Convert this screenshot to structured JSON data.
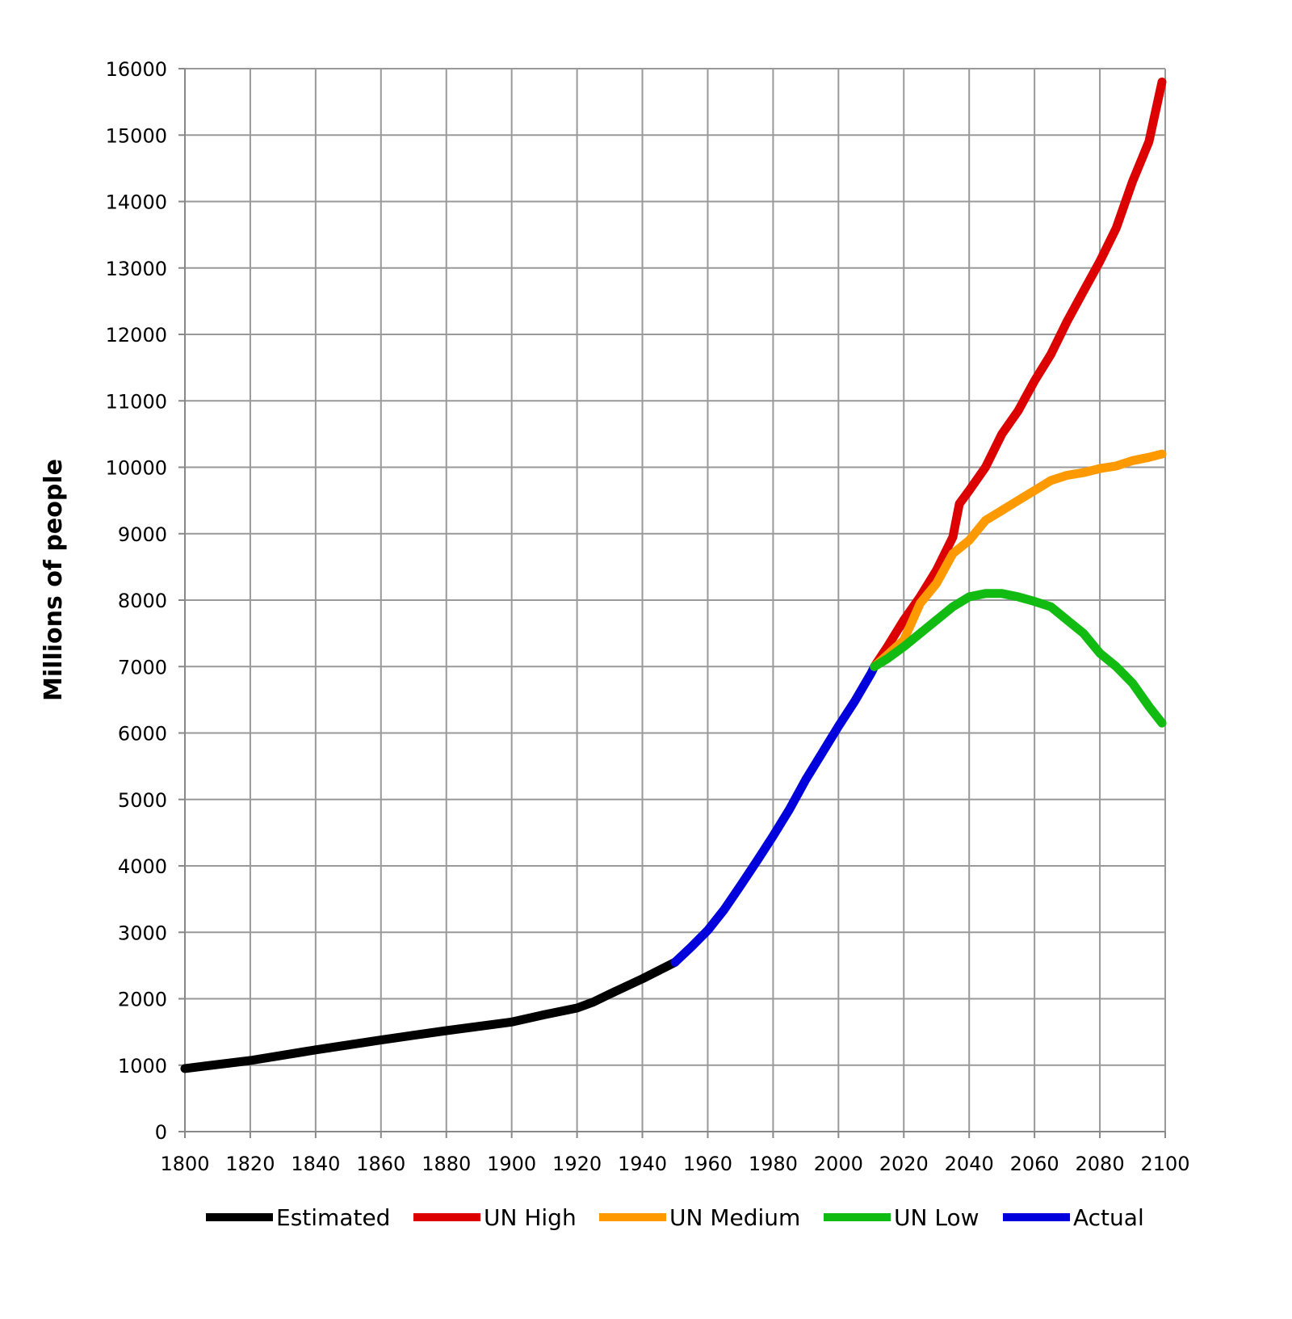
{
  "chart_data": {
    "type": "line",
    "title": "",
    "xlabel": "",
    "ylabel": "Millions of people",
    "xlim": [
      1800,
      2100
    ],
    "ylim": [
      0,
      16000
    ],
    "xticks": [
      1800,
      1820,
      1840,
      1860,
      1880,
      1900,
      1920,
      1940,
      1960,
      1980,
      2000,
      2020,
      2040,
      2060,
      2080,
      2100
    ],
    "yticks": [
      0,
      1000,
      2000,
      3000,
      4000,
      5000,
      6000,
      7000,
      8000,
      9000,
      10000,
      11000,
      12000,
      13000,
      14000,
      15000,
      16000
    ],
    "grid": true,
    "legend_position": "bottom",
    "series": [
      {
        "name": "Estimated",
        "color": "#000000",
        "x": [
          1800,
          1820,
          1840,
          1860,
          1880,
          1900,
          1910,
          1920,
          1925,
          1930,
          1940,
          1950
        ],
        "y": [
          950,
          1070,
          1230,
          1380,
          1520,
          1650,
          1760,
          1860,
          1950,
          2070,
          2300,
          2550
        ]
      },
      {
        "name": "UN High",
        "color": "#dd0000",
        "x": [
          2011,
          2015,
          2020,
          2025,
          2030,
          2035,
          2037,
          2040,
          2045,
          2050,
          2055,
          2060,
          2065,
          2070,
          2075,
          2080,
          2085,
          2090,
          2095,
          2099
        ],
        "y": [
          7000,
          7300,
          7700,
          8050,
          8450,
          8950,
          9450,
          9650,
          10000,
          10500,
          10850,
          11300,
          11700,
          12200,
          12650,
          13100,
          13600,
          14300,
          14900,
          15800
        ]
      },
      {
        "name": "UN Medium",
        "color": "#ff9900",
        "x": [
          2011,
          2020,
          2025,
          2030,
          2035,
          2040,
          2045,
          2050,
          2055,
          2060,
          2065,
          2070,
          2075,
          2080,
          2085,
          2090,
          2095,
          2099
        ],
        "y": [
          7000,
          7400,
          7950,
          8250,
          8700,
          8900,
          9200,
          9350,
          9500,
          9650,
          9800,
          9880,
          9920,
          9980,
          10020,
          10100,
          10150,
          10200
        ]
      },
      {
        "name": "UN Low",
        "color": "#11bb11",
        "x": [
          2011,
          2015,
          2020,
          2025,
          2030,
          2035,
          2040,
          2045,
          2050,
          2055,
          2060,
          2065,
          2070,
          2075,
          2080,
          2085,
          2090,
          2095,
          2099
        ],
        "y": [
          7000,
          7120,
          7300,
          7500,
          7700,
          7900,
          8050,
          8100,
          8100,
          8050,
          7980,
          7900,
          7700,
          7500,
          7200,
          7000,
          6750,
          6400,
          6150
        ]
      },
      {
        "name": "Actual",
        "color": "#0000dd",
        "x": [
          1950,
          1955,
          1960,
          1965,
          1970,
          1975,
          1980,
          1985,
          1990,
          1995,
          2000,
          2005,
          2010,
          2011
        ],
        "y": [
          2550,
          2780,
          3030,
          3340,
          3700,
          4070,
          4450,
          4850,
          5300,
          5700,
          6100,
          6480,
          6900,
          7000
        ]
      }
    ]
  }
}
